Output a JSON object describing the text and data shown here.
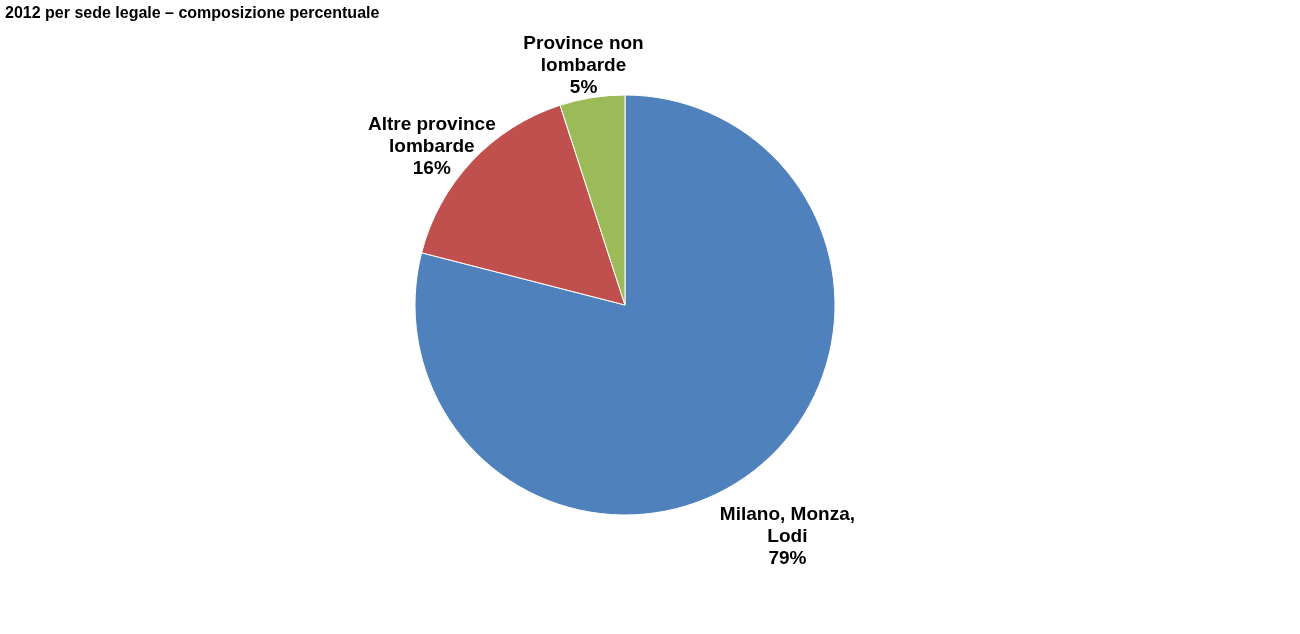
{
  "chart_data": {
    "type": "pie",
    "title": "2012 per sede legale – composizione percentuale",
    "categories": [
      "Milano, Monza, Lodi",
      "Altre province lombarde",
      "Province non lombarde"
    ],
    "values": [
      79,
      16,
      5
    ],
    "colors": [
      "#4f81bd",
      "#c0504d",
      "#9bbb59"
    ],
    "value_labels": [
      "79%",
      "16%",
      "5%"
    ],
    "legend": false
  }
}
